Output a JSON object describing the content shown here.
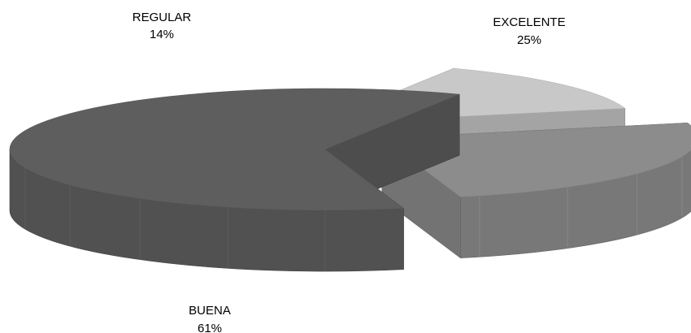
{
  "chart_data": {
    "type": "pie",
    "style": "3d-exploded",
    "slices": [
      {
        "name": "EXCELENTE",
        "value": 25,
        "label": "25%",
        "color": "#8c8c8c"
      },
      {
        "name": "BUENA",
        "value": 61,
        "label": "61%",
        "color": "#5e5e5f"
      },
      {
        "name": "REGULAR",
        "value": 14,
        "label": "14%",
        "color": "#c8c8c8"
      }
    ]
  }
}
